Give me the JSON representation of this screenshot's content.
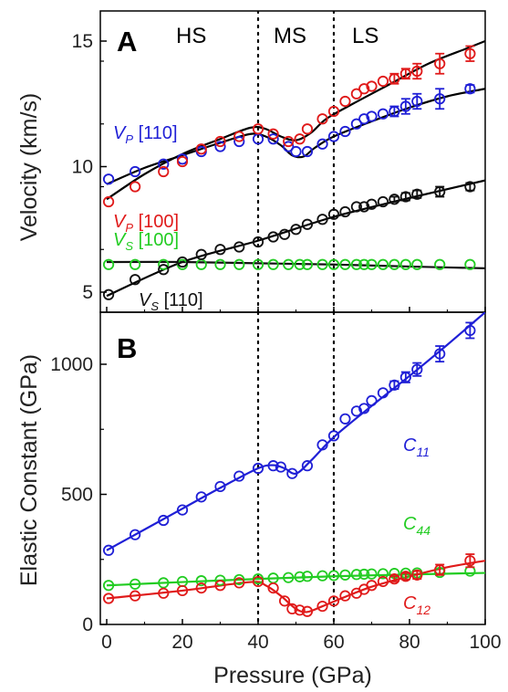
{
  "chart_data": [
    {
      "panel": "A",
      "type": "scatter",
      "xlim": [
        0,
        100
      ],
      "ylim": [
        4.2,
        16.2
      ],
      "xticks": [
        0,
        20,
        40,
        60,
        80,
        100
      ],
      "yticks": [
        5,
        10,
        15
      ],
      "xlabel": "",
      "ylabel": "Velocity (km/s)",
      "vlines": [
        40,
        60
      ],
      "regions": [
        "HS",
        "MS",
        "LS"
      ],
      "series": [
        {
          "label": {
            "sym": "V",
            "sub": "P",
            "rest": " [110]"
          },
          "color": "#1f1fd6",
          "x": [
            0.5,
            7.5,
            15,
            20,
            25,
            30,
            35,
            40,
            44,
            48,
            50,
            53,
            57,
            60,
            63,
            66,
            68,
            70,
            73,
            76,
            79,
            82,
            88,
            96
          ],
          "y": [
            9.5,
            9.8,
            10.1,
            10.3,
            10.6,
            10.8,
            11.0,
            11.1,
            11.1,
            10.8,
            10.6,
            10.6,
            10.9,
            11.2,
            11.4,
            11.7,
            11.9,
            12.0,
            12.1,
            12.2,
            12.4,
            12.6,
            12.7,
            13.1
          ],
          "err": [
            0,
            0,
            0,
            0,
            0,
            0,
            0,
            0,
            0,
            0,
            0,
            0,
            0,
            0,
            0,
            0,
            0,
            0,
            0,
            0.2,
            0.3,
            0.3,
            0.4,
            0.15
          ],
          "fit": [
            [
              0,
              9.3
            ],
            [
              10,
              9.95
            ],
            [
              20,
              10.45
            ],
            [
              30,
              10.95
            ],
            [
              38,
              11.3
            ],
            [
              42,
              11.2
            ],
            [
              46,
              10.85
            ],
            [
              49,
              10.45
            ],
            [
              52,
              10.4
            ],
            [
              55,
              10.75
            ],
            [
              60,
              11.2
            ],
            [
              70,
              11.8
            ],
            [
              80,
              12.35
            ],
            [
              90,
              12.8
            ],
            [
              100,
              13.1
            ]
          ]
        },
        {
          "label": {
            "sym": "V",
            "sub": "P",
            "rest": " [100]"
          },
          "color": "#e01a1a",
          "x": [
            0.5,
            7.5,
            15,
            20,
            25,
            30,
            35,
            40,
            44,
            48,
            51,
            53,
            57,
            60,
            63,
            66,
            68,
            70,
            73,
            76,
            79,
            82,
            88,
            96
          ],
          "y": [
            8.6,
            9.2,
            9.8,
            10.2,
            10.7,
            11.0,
            11.2,
            11.5,
            11.3,
            11.0,
            11.1,
            11.5,
            11.9,
            12.2,
            12.6,
            12.9,
            13.1,
            13.2,
            13.4,
            13.5,
            13.7,
            13.8,
            14.1,
            14.5
          ],
          "err": [
            0,
            0,
            0,
            0,
            0,
            0,
            0,
            0,
            0,
            0,
            0,
            0,
            0,
            0,
            0,
            0,
            0,
            0,
            0,
            0.2,
            0.2,
            0.3,
            0.4,
            0.3
          ],
          "fit": [
            [
              0,
              8.7
            ],
            [
              10,
              9.7
            ],
            [
              20,
              10.5
            ],
            [
              30,
              11.1
            ],
            [
              38,
              11.55
            ],
            [
              42,
              11.5
            ],
            [
              46,
              11.2
            ],
            [
              50,
              11.05
            ],
            [
              54,
              11.35
            ],
            [
              58,
              11.9
            ],
            [
              65,
              12.5
            ],
            [
              75,
              13.3
            ],
            [
              85,
              14.1
            ],
            [
              95,
              14.7
            ],
            [
              100,
              15.0
            ]
          ]
        },
        {
          "label": {
            "sym": "V",
            "sub": "S",
            "rest": " [100]"
          },
          "color": "#22cc22",
          "x": [
            0.5,
            7.5,
            15,
            20,
            25,
            30,
            35,
            40,
            44,
            48,
            51,
            53,
            57,
            60,
            63,
            66,
            68,
            70,
            73,
            76,
            79,
            82,
            88,
            96
          ],
          "y": [
            6.1,
            6.1,
            6.1,
            6.1,
            6.1,
            6.1,
            6.1,
            6.1,
            6.1,
            6.1,
            6.1,
            6.1,
            6.1,
            6.1,
            6.1,
            6.1,
            6.1,
            6.1,
            6.1,
            6.1,
            6.1,
            6.1,
            6.1,
            6.1
          ],
          "err": [
            0,
            0,
            0,
            0,
            0,
            0,
            0,
            0,
            0,
            0,
            0,
            0,
            0,
            0,
            0,
            0,
            0,
            0,
            0,
            0,
            0,
            0,
            0,
            0
          ]
        },
        {
          "label": {
            "sym": "V",
            "sub": "S",
            "rest": " [110]"
          },
          "color": "#111111",
          "x": [
            0.5,
            7.5,
            15,
            20,
            25,
            30,
            35,
            40,
            44,
            47,
            50,
            53,
            57,
            60,
            63,
            66,
            68,
            70,
            73,
            76,
            79,
            82,
            88,
            96
          ],
          "y": [
            4.9,
            5.5,
            5.9,
            6.2,
            6.5,
            6.7,
            6.8,
            7.0,
            7.2,
            7.3,
            7.5,
            7.7,
            7.9,
            8.1,
            8.2,
            8.4,
            8.4,
            8.5,
            8.6,
            8.7,
            8.8,
            8.9,
            9.0,
            9.2
          ],
          "err": [
            0,
            0,
            0,
            0,
            0,
            0,
            0,
            0,
            0,
            0,
            0,
            0,
            0,
            0,
            0,
            0,
            0,
            0,
            0,
            0.1,
            0.15,
            0.15,
            0.2,
            0.15
          ],
          "fit": [
            [
              0,
              4.85
            ],
            [
              20,
              6.2
            ],
            [
              40,
              7.05
            ],
            [
              60,
              8.0
            ],
            [
              80,
              8.75
            ],
            [
              100,
              9.45
            ]
          ]
        }
      ],
      "extra_lines": [
        {
          "color": "#111111",
          "points": [
            [
              0,
              6.2
            ],
            [
              20,
              6.2
            ],
            [
              40,
              6.15
            ],
            [
              60,
              6.1
            ],
            [
              80,
              6.02
            ],
            [
              100,
              5.95
            ]
          ]
        }
      ]
    },
    {
      "panel": "B",
      "type": "scatter",
      "xlim": [
        0,
        100
      ],
      "ylim": [
        0,
        1200
      ],
      "xticks": [
        0,
        20,
        40,
        60,
        80,
        100
      ],
      "yticks": [
        0,
        500,
        1000
      ],
      "xlabel": "Pressure (GPa)",
      "ylabel": "Elastic Constant (GPa)",
      "vlines": [
        40,
        60
      ],
      "series": [
        {
          "label": {
            "sym": "C",
            "sub": "11",
            "rest": ""
          },
          "color": "#1f1fd6",
          "x": [
            0.5,
            7.5,
            15,
            20,
            25,
            30,
            35,
            40,
            44,
            46,
            49,
            53,
            57,
            60,
            63,
            66,
            68,
            70,
            73,
            76,
            79,
            82,
            88,
            96
          ],
          "y": [
            285,
            345,
            400,
            440,
            490,
            530,
            570,
            600,
            610,
            605,
            580,
            610,
            690,
            725,
            790,
            820,
            830,
            860,
            890,
            920,
            950,
            980,
            1040,
            1130
          ],
          "err": [
            0,
            0,
            0,
            0,
            0,
            0,
            0,
            0,
            0,
            0,
            0,
            0,
            0,
            0,
            0,
            0,
            0,
            0,
            0,
            15,
            20,
            25,
            30,
            30
          ],
          "fit": [
            [
              0,
              285
            ],
            [
              10,
              365
            ],
            [
              20,
              445
            ],
            [
              30,
              525
            ],
            [
              40,
              600
            ],
            [
              44,
              612
            ],
            [
              47,
              600
            ],
            [
              50,
              580
            ],
            [
              54,
              630
            ],
            [
              60,
              720
            ],
            [
              70,
              840
            ],
            [
              80,
              955
            ],
            [
              90,
              1075
            ],
            [
              100,
              1200
            ]
          ]
        },
        {
          "label": {
            "sym": "C",
            "sub": "44",
            "rest": ""
          },
          "color": "#22cc22",
          "x": [
            0.5,
            7.5,
            15,
            20,
            25,
            30,
            35,
            40,
            44,
            48,
            51,
            53,
            57,
            60,
            63,
            66,
            68,
            70,
            73,
            76,
            79,
            82,
            88,
            96
          ],
          "y": [
            150,
            155,
            160,
            165,
            168,
            170,
            172,
            175,
            178,
            180,
            183,
            185,
            187,
            188,
            190,
            192,
            193,
            194,
            195,
            196,
            197,
            198,
            200,
            205
          ],
          "err": [
            0,
            0,
            0,
            0,
            0,
            0,
            0,
            0,
            0,
            0,
            0,
            0,
            0,
            0,
            0,
            0,
            0,
            0,
            0,
            0,
            0,
            0,
            0,
            0
          ],
          "fit": [
            [
              0,
              150
            ],
            [
              20,
              163
            ],
            [
              40,
              175
            ],
            [
              60,
              185
            ],
            [
              80,
              192
            ],
            [
              100,
              198
            ]
          ]
        },
        {
          "label": {
            "sym": "C",
            "sub": "12",
            "rest": ""
          },
          "color": "#e01a1a",
          "x": [
            0.5,
            7.5,
            15,
            20,
            25,
            30,
            35,
            40,
            44,
            47,
            49,
            51,
            53,
            57,
            60,
            63,
            66,
            68,
            70,
            73,
            76,
            79,
            82,
            88,
            96
          ],
          "y": [
            100,
            110,
            120,
            130,
            140,
            150,
            160,
            165,
            140,
            90,
            60,
            55,
            50,
            70,
            90,
            110,
            120,
            135,
            150,
            165,
            175,
            185,
            190,
            210,
            245
          ],
          "err": [
            0,
            0,
            0,
            0,
            0,
            0,
            0,
            0,
            0,
            0,
            0,
            0,
            0,
            0,
            0,
            0,
            0,
            0,
            0,
            0,
            10,
            12,
            15,
            20,
            25
          ],
          "fit": [
            [
              0,
              100
            ],
            [
              20,
              130
            ],
            [
              38,
              163
            ],
            [
              42,
              150
            ],
            [
              46,
              110
            ],
            [
              50,
              60
            ],
            [
              53,
              48
            ],
            [
              57,
              70
            ],
            [
              62,
              100
            ],
            [
              70,
              145
            ],
            [
              80,
              185
            ],
            [
              90,
              220
            ],
            [
              100,
              245
            ]
          ]
        }
      ]
    }
  ]
}
